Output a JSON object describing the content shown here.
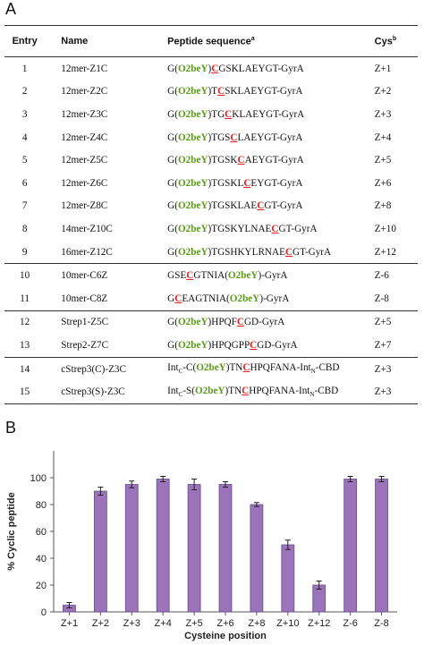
{
  "panels": {
    "a": "A",
    "b": "B"
  },
  "table": {
    "headers": {
      "entry": "Entry",
      "name": "Name",
      "sequence": "Peptide sequence",
      "sequence_sup": "a",
      "cys": "Cys",
      "cys_sup": "b"
    },
    "groups": [
      [
        {
          "entry": "1",
          "name": "12mer-Z1C",
          "seq": [
            [
              "t",
              "G("
            ],
            [
              "o",
              "O2beY"
            ],
            [
              "t",
              ")"
            ],
            [
              "c",
              "C"
            ],
            [
              "t",
              "GSKLAEYGT-GyrA"
            ]
          ],
          "cys": "Z+1"
        },
        {
          "entry": "2",
          "name": "12mer-Z2C",
          "seq": [
            [
              "t",
              "G("
            ],
            [
              "o",
              "O2beY"
            ],
            [
              "t",
              ")T"
            ],
            [
              "c",
              "C"
            ],
            [
              "t",
              "SKLAEYGT-GyrA"
            ]
          ],
          "cys": "Z+2"
        },
        {
          "entry": "3",
          "name": "12mer-Z3C",
          "seq": [
            [
              "t",
              "G("
            ],
            [
              "o",
              "O2beY"
            ],
            [
              "t",
              ")TG"
            ],
            [
              "c",
              "C"
            ],
            [
              "t",
              "KLAEYGT-GyrA"
            ]
          ],
          "cys": "Z+3"
        },
        {
          "entry": "4",
          "name": "12mer-Z4C",
          "seq": [
            [
              "t",
              "G("
            ],
            [
              "o",
              "O2beY"
            ],
            [
              "t",
              ")TGS"
            ],
            [
              "c",
              "C"
            ],
            [
              "t",
              "LAEYGT-GyrA"
            ]
          ],
          "cys": "Z+4"
        },
        {
          "entry": "5",
          "name": "12mer-Z5C",
          "seq": [
            [
              "t",
              "G("
            ],
            [
              "o",
              "O2beY"
            ],
            [
              "t",
              ")TGSK"
            ],
            [
              "c",
              "C"
            ],
            [
              "t",
              "AEYGT-GyrA"
            ]
          ],
          "cys": "Z+5"
        },
        {
          "entry": "6",
          "name": "12mer-Z6C",
          "seq": [
            [
              "t",
              "G("
            ],
            [
              "o",
              "O2beY"
            ],
            [
              "t",
              ")TGSKL"
            ],
            [
              "c",
              "C"
            ],
            [
              "t",
              "EYGT-GyrA"
            ]
          ],
          "cys": "Z+6"
        },
        {
          "entry": "7",
          "name": "12mer-Z8C",
          "seq": [
            [
              "t",
              "G("
            ],
            [
              "o",
              "O2beY"
            ],
            [
              "t",
              ")TGSKLAE"
            ],
            [
              "c",
              "C"
            ],
            [
              "t",
              "GT-GyrA"
            ]
          ],
          "cys": "Z+8"
        },
        {
          "entry": "8",
          "name": "14mer-Z10C",
          "seq": [
            [
              "t",
              "G("
            ],
            [
              "o",
              "O2beY"
            ],
            [
              "t",
              ")TGSKYLNAE"
            ],
            [
              "c",
              "C"
            ],
            [
              "t",
              "GT-GyrA"
            ]
          ],
          "cys": "Z+10"
        },
        {
          "entry": "9",
          "name": "16mer-Z12C",
          "seq": [
            [
              "t",
              "G("
            ],
            [
              "o",
              "O2beY"
            ],
            [
              "t",
              ")TGSHKYLRNAE"
            ],
            [
              "c",
              "C"
            ],
            [
              "t",
              "GT-GyrA"
            ]
          ],
          "cys": "Z+12"
        }
      ],
      [
        {
          "entry": "10",
          "name": "10mer-C6Z",
          "seq": [
            [
              "t",
              "GSE"
            ],
            [
              "c",
              "C"
            ],
            [
              "t",
              "GTNIA("
            ],
            [
              "o",
              "O2beY"
            ],
            [
              "t",
              ")-GyrA"
            ]
          ],
          "cys": "Z-6"
        },
        {
          "entry": "11",
          "name": "10mer-C8Z",
          "seq": [
            [
              "t",
              "G"
            ],
            [
              "c",
              "C"
            ],
            [
              "t",
              "EAGTNIA("
            ],
            [
              "o",
              "O2beY"
            ],
            [
              "t",
              ")-GyrA"
            ]
          ],
          "cys": "Z-8"
        }
      ],
      [
        {
          "entry": "12",
          "name": "Strep1-Z5C",
          "seq": [
            [
              "t",
              "G("
            ],
            [
              "o",
              "O2beY"
            ],
            [
              "t",
              ")HPQF"
            ],
            [
              "c",
              "C"
            ],
            [
              "t",
              "GD-GyrA"
            ]
          ],
          "cys": "Z+5"
        },
        {
          "entry": "13",
          "name": "Strep2-Z7C",
          "seq": [
            [
              "t",
              "G("
            ],
            [
              "o",
              "O2beY"
            ],
            [
              "t",
              ")HPQGPP"
            ],
            [
              "c",
              "C"
            ],
            [
              "t",
              "GD-GyrA"
            ]
          ],
          "cys": "Z+7"
        }
      ],
      [
        {
          "entry": "14",
          "name": "cStrep3(C)-Z3C",
          "seq": [
            [
              "t",
              "Int"
            ],
            [
              "s",
              "C"
            ],
            [
              "t",
              "-C("
            ],
            [
              "o",
              "O2beY"
            ],
            [
              "t",
              ")TN"
            ],
            [
              "c",
              "C"
            ],
            [
              "t",
              "HPQFANA-Int"
            ],
            [
              "s",
              "N"
            ],
            [
              "t",
              "-CBD"
            ]
          ],
          "cys": "Z+3"
        },
        {
          "entry": "15",
          "name": "cStrep3(S)-Z3C",
          "seq": [
            [
              "t",
              "Int"
            ],
            [
              "s",
              "C"
            ],
            [
              "t",
              "-S("
            ],
            [
              "o",
              "O2beY"
            ],
            [
              "t",
              ")TN"
            ],
            [
              "c",
              "C"
            ],
            [
              "t",
              "HPQFANA-Int"
            ],
            [
              "s",
              "N"
            ],
            [
              "t",
              "-CBD"
            ]
          ],
          "cys": "Z+3"
        }
      ]
    ]
  },
  "chart_data": {
    "type": "bar",
    "categories": [
      "Z+1",
      "Z+2",
      "Z+3",
      "Z+4",
      "Z+5",
      "Z+6",
      "Z+8",
      "Z+10",
      "Z+12",
      "Z-6",
      "Z-8"
    ],
    "values": [
      5,
      90,
      95,
      99,
      95,
      95,
      80,
      50,
      20,
      99,
      99
    ],
    "errors": [
      2,
      3,
      2.5,
      2,
      4,
      2,
      1.5,
      3.5,
      3,
      2,
      2
    ],
    "xlabel": "Cysteine position",
    "ylabel": "% Cyclic peptide",
    "ylim": [
      0,
      120
    ],
    "yticks": [
      0,
      20,
      40,
      60,
      80,
      100
    ],
    "grid": false,
    "bar_color": "#9a73b8",
    "bar_edge_color": "#6a4a8c"
  },
  "colors": {
    "unnatural_residue": "#5a9a1a",
    "cysteine": "#e0201c"
  }
}
